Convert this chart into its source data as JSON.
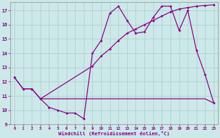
{
  "xlabel": "Windchill (Refroidissement éolien,°C)",
  "bg_color": "#cce8e8",
  "grid_color": "#aacccc",
  "line_color": "#880088",
  "xlim": [
    -0.5,
    23.5
  ],
  "ylim": [
    9,
    17.6
  ],
  "yticks": [
    9,
    10,
    11,
    12,
    13,
    14,
    15,
    16,
    17
  ],
  "xticks": [
    0,
    1,
    2,
    3,
    4,
    5,
    6,
    7,
    8,
    9,
    10,
    11,
    12,
    13,
    14,
    15,
    16,
    17,
    18,
    19,
    20,
    21,
    22,
    23
  ],
  "line1_x": [
    0,
    1,
    2,
    3,
    4,
    5,
    6,
    7,
    8,
    9,
    10,
    11,
    12,
    13,
    14,
    15,
    16,
    17,
    18,
    19,
    20,
    21,
    22,
    23
  ],
  "line1_y": [
    12.3,
    11.5,
    11.5,
    10.8,
    10.2,
    10.0,
    9.8,
    9.8,
    9.4,
    14.0,
    14.9,
    16.8,
    17.3,
    16.3,
    15.4,
    15.5,
    16.5,
    17.3,
    17.3,
    15.6,
    17.0,
    14.2,
    12.5,
    10.5
  ],
  "line2_x": [
    0,
    1,
    2,
    3,
    9,
    10,
    11,
    12,
    13,
    14,
    15,
    16,
    17,
    18,
    19,
    20,
    21,
    22,
    23
  ],
  "line2_y": [
    12.3,
    11.5,
    11.5,
    10.8,
    13.1,
    13.8,
    14.3,
    14.9,
    15.4,
    15.7,
    16.0,
    16.3,
    16.6,
    16.9,
    17.1,
    17.2,
    17.3,
    17.35,
    17.4
  ],
  "line3_x": [
    3,
    8,
    9,
    14,
    19,
    22,
    23
  ],
  "line3_y": [
    10.8,
    10.8,
    10.8,
    10.8,
    10.8,
    10.8,
    10.5
  ]
}
